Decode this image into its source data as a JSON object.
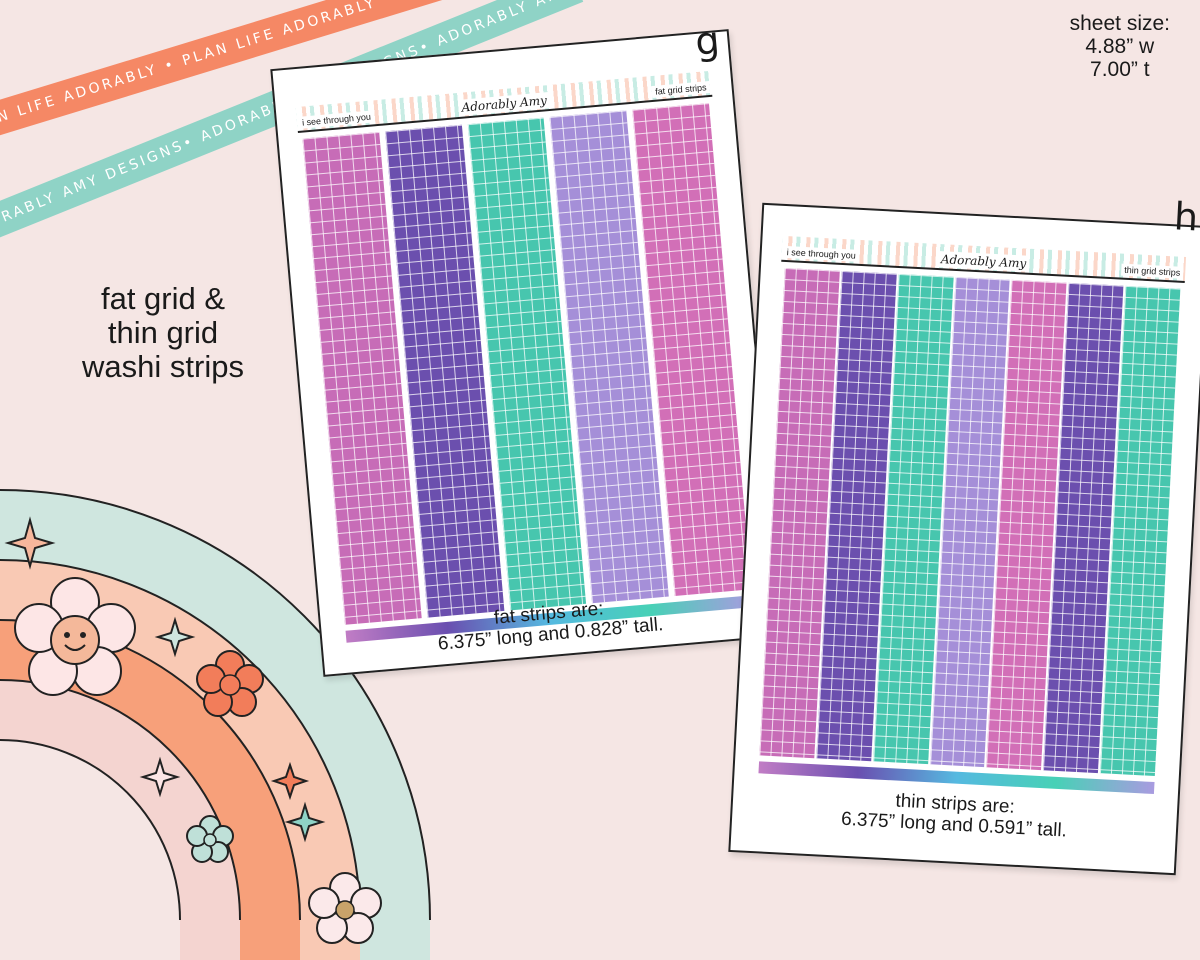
{
  "ribbons": {
    "orange_text": "PLAN LIFE ADORABLY • PLAN LIFE ADORABLY • PLAN LIFE ADORABLY •",
    "mint_text": "ADORABLY AMY DESIGNS• ADORABLY AMY DESIGNS• ADORABLY AMY DESIGNS•",
    "orange_color": "#f58865",
    "mint_color": "#8fd3c6"
  },
  "sheet_size": {
    "label": "sheet size:",
    "width": "4.88” w",
    "height": "7.00” t"
  },
  "title": {
    "line1": "fat grid &",
    "line2": "thin grid",
    "line3": "washi strips"
  },
  "sheet_g": {
    "letter": "g",
    "header_left": "i see through you",
    "header_logo": "Adorably Amy",
    "header_right": "fat grid strips",
    "strip_colors": [
      "#c76cb7",
      "#6b4fae",
      "#47c6ae",
      "#a58fd8",
      "#d26fb7"
    ],
    "caption_line1": "fat strips are:",
    "caption_line2": "6.375” long and 0.828” tall."
  },
  "sheet_h": {
    "letter": "h",
    "header_left": "i see through you",
    "header_logo": "Adorably Amy",
    "header_right": "thin grid strips",
    "strip_colors": [
      "#c76cb7",
      "#6b4fae",
      "#47c6ae",
      "#a58fd8",
      "#d26fb7",
      "#6b4fae",
      "#47c6ae"
    ],
    "caption_line1": "thin strips are:",
    "caption_line2": "6.375” long and 0.591” tall."
  },
  "rainbow": {
    "band_colors": [
      "#cfe6df",
      "#f9c9b4",
      "#f7a07a",
      "#f4d4d0"
    ],
    "flower_colors": [
      "#fde6e6",
      "#f27d5a",
      "#bfe0d8",
      "#fbe9ea"
    ]
  }
}
